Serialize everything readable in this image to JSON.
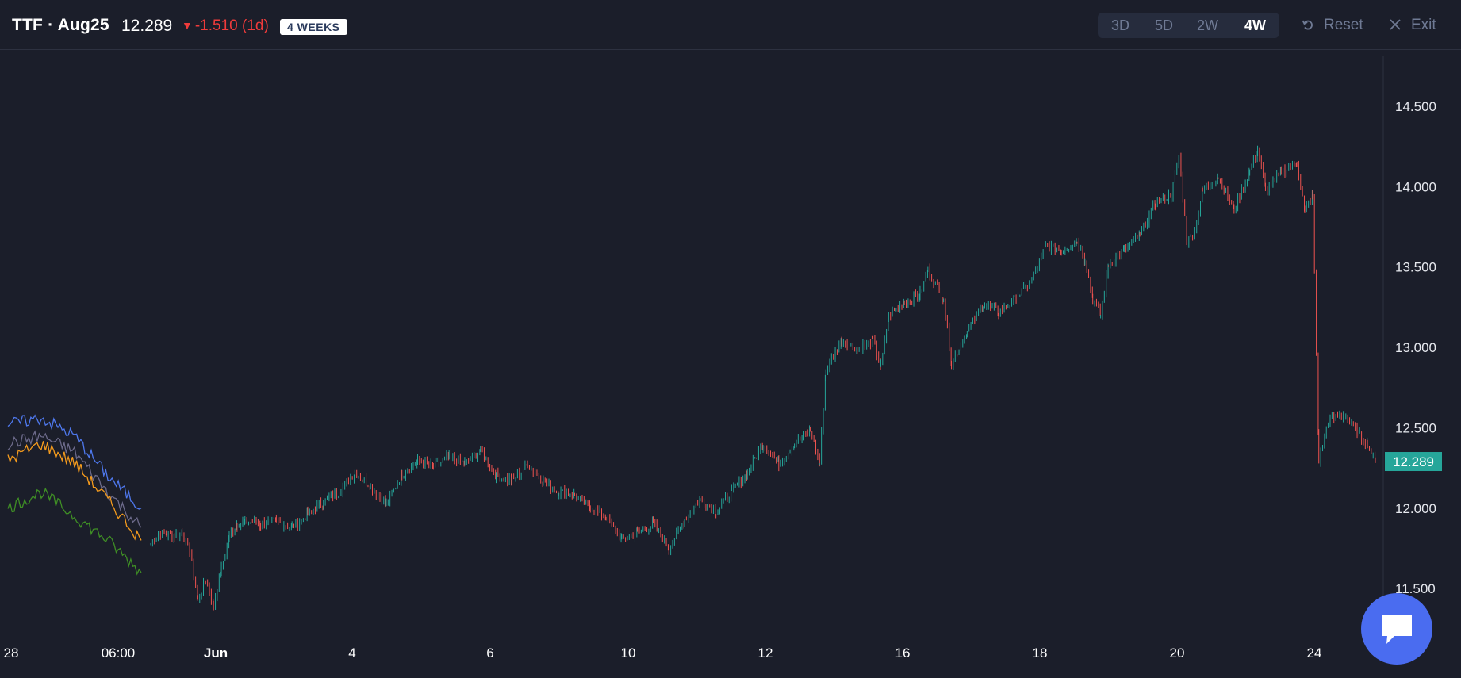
{
  "header": {
    "symbol": "TTF · Aug25",
    "price": "12.289",
    "change": "-1.510 (1d)",
    "badge": "4 WEEKS"
  },
  "toolbar": {
    "ranges": [
      "3D",
      "5D",
      "2W",
      "4W"
    ],
    "active_range": "4W",
    "reset_label": "Reset",
    "exit_label": "Exit"
  },
  "colors": {
    "background": "#1b1e2a",
    "up_candle": "#26a69a",
    "down_candle": "#ef5350",
    "price_tag": "#26a69a",
    "change_negative": "#ef3b3b",
    "chat_button": "#4a6cf0"
  },
  "icons": {
    "reset": "reset-icon",
    "exit": "close-icon",
    "chat": "chat-bubble-icon",
    "change_direction": "triangle-down-icon"
  },
  "chart_data": {
    "type": "line",
    "title": "",
    "ylim": [
      11.2,
      14.85
    ],
    "y_ticks": [
      "11.500",
      "12.000",
      "12.500",
      "13.000",
      "13.500",
      "14.000",
      "14.500"
    ],
    "x_ticks": [
      "28",
      "06:00",
      "Jun",
      "4",
      "6",
      "10",
      "12",
      "16",
      "18",
      "20",
      "24"
    ],
    "last_price_label": "12.289",
    "grid": false,
    "candles": [
      [
        0.0,
        11.78
      ],
      [
        0.5,
        11.84
      ],
      [
        1.0,
        11.84
      ],
      [
        1.5,
        11.83
      ],
      [
        2.0,
        11.85
      ],
      [
        2.5,
        11.72
      ],
      [
        3.0,
        11.43
      ],
      [
        3.5,
        11.55
      ],
      [
        4.0,
        11.4
      ],
      [
        4.5,
        11.62
      ],
      [
        5.0,
        11.83
      ],
      [
        5.5,
        11.9
      ],
      [
        6.0,
        11.92
      ],
      [
        7.0,
        11.9
      ],
      [
        8.0,
        11.92
      ],
      [
        9.0,
        11.88
      ],
      [
        10.0,
        11.96
      ],
      [
        11.0,
        12.04
      ],
      [
        12.0,
        12.1
      ],
      [
        13.0,
        12.22
      ],
      [
        14.0,
        12.14
      ],
      [
        15.0,
        12.02
      ],
      [
        16.0,
        12.21
      ],
      [
        17.0,
        12.29
      ],
      [
        18.0,
        12.26
      ],
      [
        19.0,
        12.32
      ],
      [
        20.0,
        12.28
      ],
      [
        21.0,
        12.36
      ],
      [
        22.0,
        12.2
      ],
      [
        23.0,
        12.17
      ],
      [
        24.0,
        12.27
      ],
      [
        25.0,
        12.17
      ],
      [
        26.0,
        12.1
      ],
      [
        27.0,
        12.08
      ],
      [
        28.0,
        12.0
      ],
      [
        29.0,
        11.95
      ],
      [
        30.0,
        11.8
      ],
      [
        31.0,
        11.85
      ],
      [
        32.0,
        11.9
      ],
      [
        33.0,
        11.75
      ],
      [
        34.0,
        11.93
      ],
      [
        35.0,
        12.05
      ],
      [
        36.0,
        11.98
      ],
      [
        37.0,
        12.1
      ],
      [
        38.0,
        12.22
      ],
      [
        39.0,
        12.4
      ],
      [
        40.0,
        12.28
      ],
      [
        41.0,
        12.4
      ],
      [
        42.0,
        12.48
      ],
      [
        42.6,
        12.28
      ],
      [
        43.0,
        12.86
      ],
      [
        44.0,
        13.05
      ],
      [
        45.0,
        12.99
      ],
      [
        46.0,
        13.04
      ],
      [
        46.5,
        12.88
      ],
      [
        47.0,
        13.2
      ],
      [
        48.0,
        13.28
      ],
      [
        49.0,
        13.33
      ],
      [
        49.5,
        13.48
      ],
      [
        50.5,
        13.3
      ],
      [
        51.0,
        12.9
      ],
      [
        52.0,
        13.1
      ],
      [
        53.0,
        13.27
      ],
      [
        54.0,
        13.22
      ],
      [
        55.0,
        13.3
      ],
      [
        56.0,
        13.4
      ],
      [
        57.0,
        13.63
      ],
      [
        58.0,
        13.6
      ],
      [
        59.0,
        13.66
      ],
      [
        59.5,
        13.55
      ],
      [
        60.0,
        13.3
      ],
      [
        60.5,
        13.2
      ],
      [
        61.0,
        13.52
      ],
      [
        62.0,
        13.6
      ],
      [
        63.0,
        13.7
      ],
      [
        64.0,
        13.9
      ],
      [
        65.0,
        13.95
      ],
      [
        65.5,
        14.18
      ],
      [
        66.0,
        13.66
      ],
      [
        66.5,
        13.72
      ],
      [
        67.0,
        13.98
      ],
      [
        68.0,
        14.06
      ],
      [
        69.0,
        13.86
      ],
      [
        70.0,
        14.1
      ],
      [
        70.5,
        14.23
      ],
      [
        71.0,
        13.98
      ],
      [
        72.0,
        14.09
      ],
      [
        73.0,
        14.15
      ],
      [
        73.5,
        13.85
      ],
      [
        74.0,
        13.95
      ],
      [
        74.4,
        12.3
      ],
      [
        75.0,
        12.55
      ],
      [
        76.0,
        12.58
      ],
      [
        77.0,
        12.45
      ],
      [
        77.5,
        12.4
      ],
      [
        78.0,
        12.29
      ]
    ],
    "series": [
      {
        "color": "#4f79ef",
        "values": [
          [
            0,
            12.52
          ],
          [
            4,
            12.56
          ],
          [
            8,
            12.45
          ],
          [
            12,
            12.2
          ],
          [
            16,
            12.0
          ]
        ]
      },
      {
        "color": "#6c6a8a",
        "values": [
          [
            0,
            12.4
          ],
          [
            4,
            12.45
          ],
          [
            8,
            12.35
          ],
          [
            12,
            12.1
          ],
          [
            16,
            11.88
          ]
        ]
      },
      {
        "color": "#f39a1d",
        "values": [
          [
            0,
            12.3
          ],
          [
            4,
            12.4
          ],
          [
            8,
            12.28
          ],
          [
            12,
            12.05
          ],
          [
            16,
            11.8
          ]
        ]
      },
      {
        "color": "#3f8f25",
        "values": [
          [
            0,
            12.0
          ],
          [
            4,
            12.1
          ],
          [
            8,
            11.95
          ],
          [
            12,
            11.8
          ],
          [
            16,
            11.6
          ]
        ]
      }
    ]
  }
}
